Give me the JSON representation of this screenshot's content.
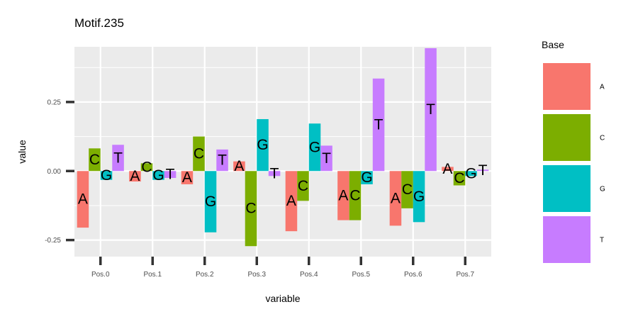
{
  "chart_data": {
    "type": "bar",
    "title": "Motif.235",
    "xlabel": "variable",
    "ylabel": "value",
    "categories": [
      "Pos.0",
      "Pos.1",
      "Pos.2",
      "Pos.3",
      "Pos.4",
      "Pos.5",
      "Pos.6",
      "Pos.7"
    ],
    "ylim": [
      -0.31,
      0.45
    ],
    "yticks": [
      -0.25,
      0.0,
      0.25
    ],
    "ytick_labels": [
      "-0.25",
      "0.00",
      "0.25"
    ],
    "legend": {
      "title": "Base",
      "position": "right"
    },
    "grid": true,
    "series": [
      {
        "name": "A",
        "color": "#F8766D",
        "values": [
          -0.205,
          -0.038,
          -0.048,
          0.035,
          -0.218,
          -0.178,
          -0.198,
          0.015
        ]
      },
      {
        "name": "C",
        "color": "#7CAE00",
        "values": [
          0.082,
          0.028,
          0.125,
          -0.272,
          -0.108,
          -0.178,
          -0.135,
          -0.052
        ]
      },
      {
        "name": "G",
        "color": "#00BFC4",
        "values": [
          -0.032,
          -0.032,
          -0.222,
          0.188,
          0.172,
          -0.048,
          -0.185,
          -0.018
        ]
      },
      {
        "name": "T",
        "color": "#C77CFF",
        "values": [
          0.095,
          -0.025,
          0.078,
          -0.018,
          0.092,
          0.335,
          0.445,
          0.005
        ]
      }
    ]
  }
}
